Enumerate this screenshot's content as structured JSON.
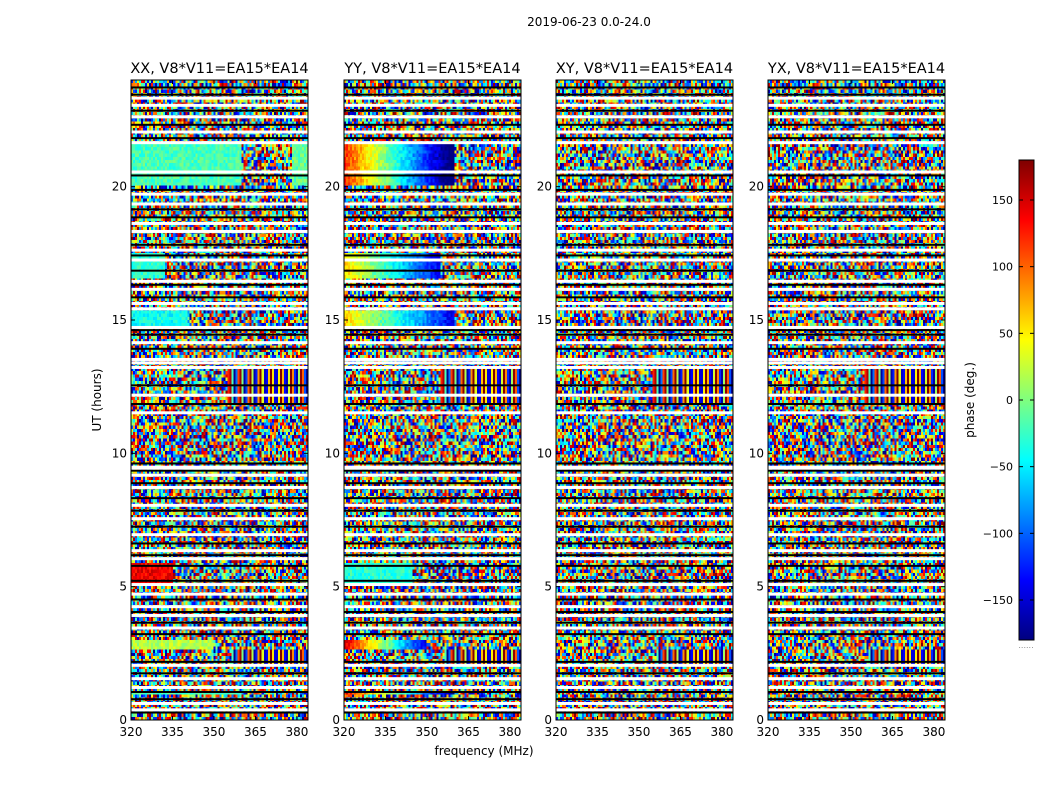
{
  "figure": {
    "suptitle": "2019-06-23 0.0-24.0",
    "xlabel": "frequency (MHz)",
    "ylabel": "UT (hours)",
    "colorbar_label": "phase (deg.)",
    "colorbar_dots": "......"
  },
  "chart_data": {
    "type": "heatmap",
    "colormap": "jet",
    "colormap_colors": [
      "#00007f",
      "#0000ff",
      "#007fff",
      "#00ffff",
      "#7fff7f",
      "#ffff00",
      "#ff7f00",
      "#ff0000",
      "#7f0000"
    ],
    "flagged_color": "#ffffff",
    "x": {
      "label": "frequency (MHz)",
      "range": [
        320,
        384
      ],
      "ticks": [
        320,
        335,
        350,
        365,
        380
      ],
      "tick_labels": [
        "320",
        "335",
        "350",
        "365",
        "380"
      ]
    },
    "y": {
      "label": "UT (hours)",
      "range": [
        0,
        24
      ],
      "ticks": [
        0,
        5,
        10,
        15,
        20
      ],
      "tick_labels": [
        "0",
        "5",
        "10",
        "15",
        "20"
      ]
    },
    "colorbar": {
      "label": "phase (deg.)",
      "range": [
        -180,
        180
      ],
      "ticks": [
        -150,
        -100,
        -50,
        0,
        50,
        100,
        150
      ],
      "tick_labels": [
        "−150",
        "−100",
        "−50",
        "0",
        "50",
        "100",
        "150"
      ]
    },
    "panels": [
      {
        "title": "XX, V8*V11=EA15*EA14",
        "coherent": [
          {
            "t0": 20.0,
            "t1": 21.6,
            "f0": 320,
            "f1": 360,
            "phase": -20,
            "grad": 0
          },
          {
            "t0": 20.0,
            "t1": 21.6,
            "f0": 378,
            "f1": 384,
            "phase": -10,
            "grad": 0
          },
          {
            "t0": 16.6,
            "t1": 17.5,
            "f0": 320,
            "f1": 332,
            "phase": -30,
            "grad": 0
          },
          {
            "t0": 14.8,
            "t1": 15.3,
            "f0": 320,
            "f1": 340,
            "phase": -40,
            "grad": 0
          },
          {
            "t0": 5.0,
            "t1": 5.9,
            "f0": 320,
            "f1": 335,
            "phase": 140,
            "grad": 0
          },
          {
            "t0": 2.6,
            "t1": 3.0,
            "f0": 320,
            "f1": 350,
            "phase": 20,
            "grad": 0
          },
          {
            "t0": 0.9,
            "t1": 1.1,
            "f0": 320,
            "f1": 360,
            "phase": -20,
            "grad": 0
          }
        ]
      },
      {
        "title": "YY, V8*V11=EA15*EA14",
        "coherent": [
          {
            "t0": 20.0,
            "t1": 21.6,
            "f0": 320,
            "f1": 360,
            "phase": 120,
            "grad": -320
          },
          {
            "t0": 16.6,
            "t1": 17.5,
            "f0": 320,
            "f1": 355,
            "phase": 60,
            "grad": -200
          },
          {
            "t0": 14.8,
            "t1": 15.3,
            "f0": 320,
            "f1": 360,
            "phase": 60,
            "grad": -200
          },
          {
            "t0": 5.0,
            "t1": 5.9,
            "f0": 320,
            "f1": 345,
            "phase": -30,
            "grad": 0
          },
          {
            "t0": 2.6,
            "t1": 3.0,
            "f0": 320,
            "f1": 350,
            "phase": 150,
            "grad": -300
          },
          {
            "t0": 0.9,
            "t1": 1.1,
            "f0": 320,
            "f1": 360,
            "phase": 140,
            "grad": -320
          }
        ]
      },
      {
        "title": "XY, V8*V11=EA15*EA14",
        "coherent": []
      },
      {
        "title": "YX, V8*V11=EA15*EA14",
        "coherent": []
      }
    ]
  }
}
